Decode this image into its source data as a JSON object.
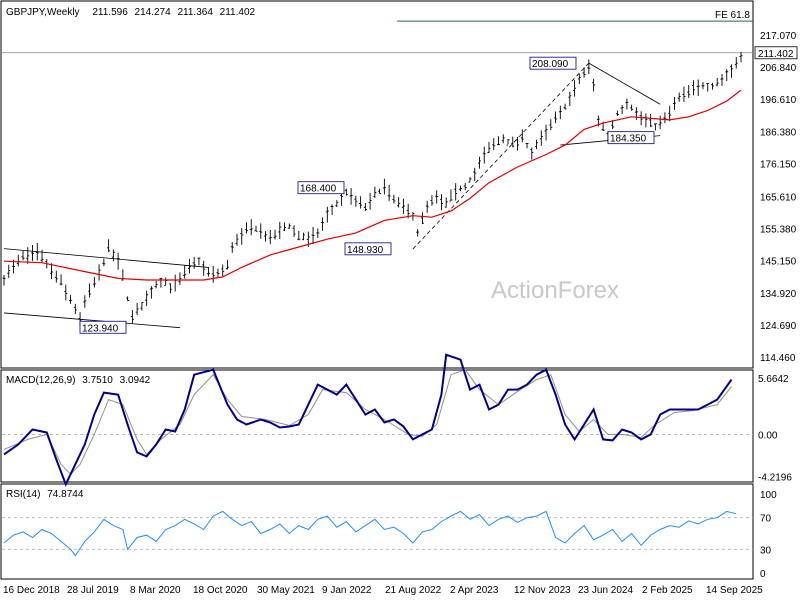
{
  "chart_data": [
    {
      "type": "candlestick",
      "header": {
        "symbol": "GBPJPY,Weekly",
        "ohlc": [
          "211.596",
          "214.274",
          "211.364",
          "211.402"
        ]
      },
      "yticks": [
        217.07,
        206.84,
        196.61,
        186.38,
        176.15,
        165.61,
        155.38,
        145.15,
        134.92,
        124.69,
        114.46
      ],
      "ytick_labels": [
        "217.070",
        "206.840",
        "196.610",
        "186.380",
        "176.150",
        "165.610",
        "155.380",
        "145.150",
        "134.920",
        "124.690",
        "114.460"
      ],
      "last_price": {
        "value": 211.402,
        "label": "211.402"
      },
      "fe_level": {
        "label": "FE 61.8",
        "value": 221.5
      },
      "annotations": [
        {
          "label": "208.090",
          "value": 208.09
        },
        {
          "label": "168.400",
          "value": 168.4
        },
        {
          "label": "148.930",
          "value": 148.93
        },
        {
          "label": "184.350",
          "value": 184.35
        },
        {
          "label": "123.940",
          "value": 123.94
        }
      ],
      "series": [
        {
          "name": "price",
          "color": "#000000"
        },
        {
          "name": "moving average",
          "color": "#e00000"
        }
      ],
      "price_path": [
        [
          0,
          140
        ],
        [
          4,
          146
        ],
        [
          7,
          148
        ],
        [
          9,
          144
        ],
        [
          12,
          138
        ],
        [
          15,
          130
        ],
        [
          16,
          126
        ],
        [
          17,
          132
        ],
        [
          19,
          138
        ],
        [
          21,
          145
        ],
        [
          22,
          149
        ],
        [
          24,
          145
        ],
        [
          25,
          140
        ],
        [
          26,
          133
        ],
        [
          27,
          127
        ],
        [
          29,
          131
        ],
        [
          31,
          136
        ],
        [
          33,
          139
        ],
        [
          35,
          137
        ],
        [
          37,
          139
        ],
        [
          39,
          143
        ],
        [
          41,
          145
        ],
        [
          43,
          141
        ],
        [
          45,
          141
        ],
        [
          47,
          143
        ],
        [
          48,
          150
        ],
        [
          50,
          153
        ],
        [
          52,
          156
        ],
        [
          54,
          155
        ],
        [
          56,
          152
        ],
        [
          58,
          155
        ],
        [
          60,
          156
        ],
        [
          62,
          153
        ],
        [
          64,
          152
        ],
        [
          66,
          154
        ],
        [
          68,
          160
        ],
        [
          70,
          163
        ],
        [
          72,
          167
        ],
        [
          74,
          164
        ],
        [
          76,
          162
        ],
        [
          78,
          166
        ],
        [
          80,
          169
        ],
        [
          82,
          164
        ],
        [
          84,
          162
        ],
        [
          86,
          160
        ],
        [
          87,
          154
        ],
        [
          89,
          162
        ],
        [
          91,
          165
        ],
        [
          93,
          163
        ],
        [
          95,
          167
        ],
        [
          97,
          169
        ],
        [
          99,
          173
        ],
        [
          101,
          179
        ],
        [
          103,
          182
        ],
        [
          105,
          184
        ],
        [
          107,
          182
        ],
        [
          109,
          184
        ],
        [
          111,
          180
        ],
        [
          113,
          184
        ],
        [
          115,
          188
        ],
        [
          117,
          192
        ],
        [
          119,
          197
        ],
        [
          121,
          203
        ],
        [
          123,
          207
        ],
        [
          124,
          201
        ],
        [
          125,
          190
        ],
        [
          127,
          185
        ],
        [
          129,
          192
        ],
        [
          131,
          196
        ],
        [
          133,
          192
        ],
        [
          135,
          190
        ],
        [
          137,
          188
        ],
        [
          139,
          190
        ],
        [
          141,
          195
        ],
        [
          143,
          198
        ],
        [
          145,
          200
        ],
        [
          147,
          201
        ],
        [
          149,
          201
        ],
        [
          151,
          203
        ],
        [
          153,
          206
        ],
        [
          155,
          211
        ]
      ],
      "ma_path": [
        [
          0,
          145
        ],
        [
          8,
          144.5
        ],
        [
          16,
          142
        ],
        [
          24,
          139.5
        ],
        [
          30,
          139
        ],
        [
          36,
          139
        ],
        [
          42,
          139
        ],
        [
          46,
          140
        ],
        [
          50,
          143
        ],
        [
          56,
          147
        ],
        [
          62,
          149.5
        ],
        [
          68,
          152
        ],
        [
          74,
          154
        ],
        [
          80,
          158
        ],
        [
          86,
          159.5
        ],
        [
          90,
          159
        ],
        [
          94,
          161
        ],
        [
          98,
          165
        ],
        [
          102,
          170
        ],
        [
          108,
          175
        ],
        [
          114,
          179
        ],
        [
          118,
          182
        ],
        [
          122,
          187
        ],
        [
          126,
          189
        ],
        [
          132,
          191
        ],
        [
          136,
          190.5
        ],
        [
          140,
          190
        ],
        [
          144,
          191
        ],
        [
          148,
          193
        ],
        [
          152,
          196
        ],
        [
          155,
          199.5
        ]
      ],
      "trendlines": [
        [
          [
            0,
            149
          ],
          [
            43,
            143
          ]
        ],
        [
          [
            0,
            128.5
          ],
          [
            37,
            123.8
          ]
        ],
        [
          [
            86,
            148.9
          ],
          [
            123,
            208.1
          ]
        ],
        [
          [
            123,
            208.1
          ],
          [
            138,
            195
          ]
        ],
        [
          [
            117,
            182
          ],
          [
            138,
            185
          ]
        ]
      ],
      "xtick_labels": [
        "16 Dec 2018",
        "28 Jul 2019",
        "8 Mar 2020",
        "18 Oct 2020",
        "30 May 2021",
        "9 Jan 2022",
        "21 Aug 2022",
        "2 Apr 2023",
        "12 Nov 2023",
        "23 Jun 2024",
        "2 Feb 2025",
        "14 Sep 2025"
      ]
    },
    {
      "type": "line",
      "title": "MACD(12,26,9)",
      "values": [
        "3.7510",
        "3.0942"
      ],
      "yticks": [
        5.6642,
        0.0,
        -4.2196
      ],
      "ytick_labels": [
        "5.6642",
        "0.00",
        "-4.2196"
      ],
      "series": [
        {
          "name": "MACD",
          "color": "#00008b"
        },
        {
          "name": "signal",
          "color": "#909090"
        }
      ],
      "macd_path": [
        [
          0,
          -2
        ],
        [
          3,
          -1
        ],
        [
          6,
          0.5
        ],
        [
          9,
          0.2
        ],
        [
          11,
          -2.5
        ],
        [
          13,
          -5
        ],
        [
          15,
          -3
        ],
        [
          17,
          -1
        ],
        [
          19,
          2
        ],
        [
          21,
          4.2
        ],
        [
          24,
          4
        ],
        [
          26,
          1
        ],
        [
          28,
          -1.8
        ],
        [
          30,
          -2.2
        ],
        [
          32,
          -1
        ],
        [
          34,
          0.5
        ],
        [
          36,
          0.3
        ],
        [
          38,
          2.5
        ],
        [
          40,
          6
        ],
        [
          44,
          6.5
        ],
        [
          47,
          3
        ],
        [
          49,
          1.5
        ],
        [
          51,
          1
        ],
        [
          54,
          1.5
        ],
        [
          56,
          1.2
        ],
        [
          58,
          0.7
        ],
        [
          60,
          0.8
        ],
        [
          62,
          1
        ],
        [
          64,
          3
        ],
        [
          66,
          5
        ],
        [
          68,
          4.5
        ],
        [
          70,
          4
        ],
        [
          72,
          5
        ],
        [
          74,
          3.5
        ],
        [
          76,
          2
        ],
        [
          78,
          2.5
        ],
        [
          80,
          1.2
        ],
        [
          82,
          1.5
        ],
        [
          84,
          0.8
        ],
        [
          86,
          -0.5
        ],
        [
          88,
          0
        ],
        [
          90,
          0.5
        ],
        [
          92,
          4
        ],
        [
          93,
          8
        ],
        [
          96,
          7.5
        ],
        [
          98,
          4.5
        ],
        [
          100,
          5
        ],
        [
          102,
          2.5
        ],
        [
          104,
          3
        ],
        [
          106,
          4.5
        ],
        [
          108,
          4.5
        ],
        [
          110,
          5
        ],
        [
          112,
          6
        ],
        [
          114,
          6.5
        ],
        [
          116,
          4
        ],
        [
          118,
          1
        ],
        [
          120,
          -0.5
        ],
        [
          122,
          1
        ],
        [
          124,
          2.5
        ],
        [
          126,
          -0.5
        ],
        [
          128,
          -0.6
        ],
        [
          130,
          0.5
        ],
        [
          132,
          0.2
        ],
        [
          134,
          -0.5
        ],
        [
          136,
          0
        ],
        [
          138,
          2
        ],
        [
          140,
          2.5
        ],
        [
          143,
          2.5
        ],
        [
          146,
          2.5
        ],
        [
          150,
          3.5
        ],
        [
          153,
          5.5
        ]
      ],
      "signal_path": [
        [
          0,
          -1.5
        ],
        [
          5,
          -0.5
        ],
        [
          9,
          0
        ],
        [
          12,
          -3
        ],
        [
          14,
          -4
        ],
        [
          16,
          -3
        ],
        [
          19,
          0
        ],
        [
          22,
          3.5
        ],
        [
          25,
          3
        ],
        [
          28,
          -0.5
        ],
        [
          30,
          -2
        ],
        [
          33,
          -0.5
        ],
        [
          37,
          1
        ],
        [
          40,
          4
        ],
        [
          44,
          6
        ],
        [
          47,
          3.5
        ],
        [
          50,
          1.8
        ],
        [
          55,
          1.5
        ],
        [
          60,
          0.9
        ],
        [
          64,
          2
        ],
        [
          67,
          4.5
        ],
        [
          72,
          4.2
        ],
        [
          76,
          2.5
        ],
        [
          80,
          1.5
        ],
        [
          85,
          0
        ],
        [
          88,
          -0.2
        ],
        [
          91,
          1
        ],
        [
          94,
          6
        ],
        [
          97,
          6.5
        ],
        [
          100,
          4.5
        ],
        [
          104,
          3
        ],
        [
          108,
          4.3
        ],
        [
          112,
          5.5
        ],
        [
          115,
          6
        ],
        [
          118,
          2
        ],
        [
          121,
          0.3
        ],
        [
          124,
          1.5
        ],
        [
          127,
          0
        ],
        [
          130,
          0
        ],
        [
          134,
          -0.3
        ],
        [
          137,
          1
        ],
        [
          141,
          2.2
        ],
        [
          145,
          2.4
        ],
        [
          150,
          3
        ],
        [
          153,
          4.8
        ]
      ]
    },
    {
      "type": "line",
      "title": "RSI(14)",
      "value": "74.8744",
      "yticks": [
        100,
        70,
        30,
        0
      ],
      "ytick_labels": [
        "100",
        "70",
        "30",
        "0"
      ],
      "series": [
        {
          "name": "RSI(14)",
          "color": "#1e90ff"
        }
      ],
      "rsi_path": [
        [
          0,
          38
        ],
        [
          2,
          48
        ],
        [
          4,
          52
        ],
        [
          6,
          45
        ],
        [
          8,
          55
        ],
        [
          10,
          50
        ],
        [
          12,
          40
        ],
        [
          14,
          30
        ],
        [
          15,
          22
        ],
        [
          17,
          40
        ],
        [
          19,
          52
        ],
        [
          21,
          68
        ],
        [
          23,
          60
        ],
        [
          25,
          55
        ],
        [
          26,
          30
        ],
        [
          28,
          45
        ],
        [
          30,
          48
        ],
        [
          32,
          40
        ],
        [
          34,
          55
        ],
        [
          36,
          60
        ],
        [
          38,
          68
        ],
        [
          40,
          62
        ],
        [
          42,
          55
        ],
        [
          44,
          72
        ],
        [
          46,
          78
        ],
        [
          48,
          68
        ],
        [
          50,
          60
        ],
        [
          52,
          65
        ],
        [
          54,
          50
        ],
        [
          56,
          55
        ],
        [
          58,
          62
        ],
        [
          60,
          50
        ],
        [
          62,
          60
        ],
        [
          64,
          55
        ],
        [
          66,
          68
        ],
        [
          68,
          72
        ],
        [
          70,
          58
        ],
        [
          72,
          65
        ],
        [
          74,
          52
        ],
        [
          76,
          60
        ],
        [
          78,
          68
        ],
        [
          80,
          55
        ],
        [
          82,
          58
        ],
        [
          84,
          50
        ],
        [
          86,
          38
        ],
        [
          88,
          52
        ],
        [
          90,
          55
        ],
        [
          92,
          65
        ],
        [
          94,
          72
        ],
        [
          96,
          78
        ],
        [
          98,
          68
        ],
        [
          100,
          74
        ],
        [
          102,
          60
        ],
        [
          104,
          68
        ],
        [
          106,
          72
        ],
        [
          108,
          64
        ],
        [
          110,
          70
        ],
        [
          112,
          72
        ],
        [
          114,
          78
        ],
        [
          116,
          45
        ],
        [
          118,
          38
        ],
        [
          120,
          50
        ],
        [
          122,
          60
        ],
        [
          124,
          42
        ],
        [
          126,
          48
        ],
        [
          128,
          55
        ],
        [
          130,
          40
        ],
        [
          132,
          50
        ],
        [
          134,
          35
        ],
        [
          136,
          48
        ],
        [
          138,
          55
        ],
        [
          140,
          60
        ],
        [
          142,
          58
        ],
        [
          144,
          66
        ],
        [
          146,
          62
        ],
        [
          148,
          68
        ],
        [
          150,
          70
        ],
        [
          152,
          78
        ],
        [
          154,
          75
        ]
      ]
    }
  ],
  "watermark": "ActionForex"
}
